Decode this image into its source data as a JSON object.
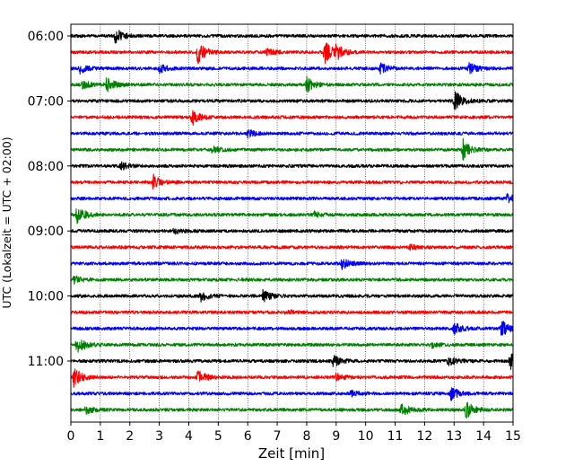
{
  "chart_data": {
    "type": "line",
    "subtype": "helicorder",
    "xlabel": "Zeit  [min]",
    "ylabel": "UTC (Lokalzeit = UTC + 02:00)",
    "xlim": [
      0,
      15
    ],
    "x_ticks": [
      "0",
      "1",
      "2",
      "3",
      "4",
      "5",
      "6",
      "7",
      "8",
      "9",
      "10",
      "11",
      "12",
      "13",
      "14",
      "15"
    ],
    "y_ticks": [
      "06:00",
      "07:00",
      "08:00",
      "09:00",
      "10:00",
      "11:00"
    ],
    "grid": "vertical-dotted",
    "line_interval_minutes": 15,
    "trace_colors": [
      "#000000",
      "#ff0000",
      "#0000ff",
      "#008000"
    ],
    "traces": [
      {
        "time": "06:00",
        "color": "#000000",
        "events": [
          [
            1.5,
            1.2
          ]
        ]
      },
      {
        "time": "06:15",
        "color": "#ff0000",
        "events": [
          [
            4.3,
            1.8
          ],
          [
            8.6,
            2.0
          ],
          [
            9.0,
            1.0
          ],
          [
            6.6,
            0.7
          ]
        ]
      },
      {
        "time": "06:30",
        "color": "#0000ff",
        "events": [
          [
            0.3,
            0.8
          ],
          [
            3.0,
            0.7
          ],
          [
            10.5,
            0.8
          ],
          [
            13.5,
            1.0
          ]
        ]
      },
      {
        "time": "06:45",
        "color": "#008000",
        "events": [
          [
            1.2,
            1.3
          ],
          [
            8.0,
            1.2
          ],
          [
            0.4,
            0.6
          ]
        ]
      },
      {
        "time": "07:00",
        "color": "#000000",
        "events": [
          [
            13.0,
            1.8
          ]
        ]
      },
      {
        "time": "07:15",
        "color": "#ff0000",
        "events": [
          [
            4.1,
            1.3
          ]
        ]
      },
      {
        "time": "07:30",
        "color": "#0000ff",
        "events": [
          [
            6.0,
            0.6
          ]
        ]
      },
      {
        "time": "07:45",
        "color": "#008000",
        "events": [
          [
            13.3,
            1.6
          ],
          [
            4.8,
            0.5
          ]
        ]
      },
      {
        "time": "08:00",
        "color": "#000000",
        "events": [
          [
            1.7,
            0.6
          ]
        ]
      },
      {
        "time": "08:15",
        "color": "#ff0000",
        "events": [
          [
            2.8,
            1.2
          ]
        ]
      },
      {
        "time": "08:30",
        "color": "#0000ff",
        "events": [
          [
            14.8,
            0.7
          ]
        ]
      },
      {
        "time": "08:45",
        "color": "#008000",
        "events": [
          [
            0.2,
            1.4
          ],
          [
            8.2,
            0.5
          ]
        ]
      },
      {
        "time": "09:00",
        "color": "#000000",
        "events": [
          [
            3.5,
            0.5
          ]
        ]
      },
      {
        "time": "09:15",
        "color": "#ff0000",
        "events": [
          [
            11.5,
            0.4
          ]
        ]
      },
      {
        "time": "09:30",
        "color": "#0000ff",
        "events": [
          [
            9.2,
            0.8
          ]
        ]
      },
      {
        "time": "09:45",
        "color": "#008000",
        "events": [
          [
            0.1,
            0.6
          ]
        ]
      },
      {
        "time": "10:00",
        "color": "#000000",
        "events": [
          [
            4.4,
            0.9
          ],
          [
            6.5,
            1.1
          ]
        ]
      },
      {
        "time": "10:15",
        "color": "#ff0000",
        "events": [
          [
            7.3,
            0.4
          ]
        ]
      },
      {
        "time": "10:30",
        "color": "#0000ff",
        "events": [
          [
            13.0,
            1.0
          ],
          [
            14.6,
            1.3
          ]
        ]
      },
      {
        "time": "10:45",
        "color": "#008000",
        "events": [
          [
            0.2,
            1.6
          ],
          [
            12.2,
            0.5
          ]
        ]
      },
      {
        "time": "11:00",
        "color": "#000000",
        "events": [
          [
            8.9,
            0.9
          ],
          [
            12.8,
            0.8
          ],
          [
            14.9,
            1.5
          ]
        ]
      },
      {
        "time": "11:15",
        "color": "#ff0000",
        "events": [
          [
            0.1,
            1.6
          ],
          [
            4.3,
            1.2
          ],
          [
            9.0,
            0.6
          ]
        ]
      },
      {
        "time": "11:30",
        "color": "#0000ff",
        "events": [
          [
            12.9,
            1.1
          ],
          [
            9.5,
            0.5
          ]
        ]
      },
      {
        "time": "11:45",
        "color": "#008000",
        "events": [
          [
            11.2,
            1.1
          ],
          [
            13.4,
            1.4
          ],
          [
            0.5,
            0.6
          ]
        ]
      }
    ]
  }
}
